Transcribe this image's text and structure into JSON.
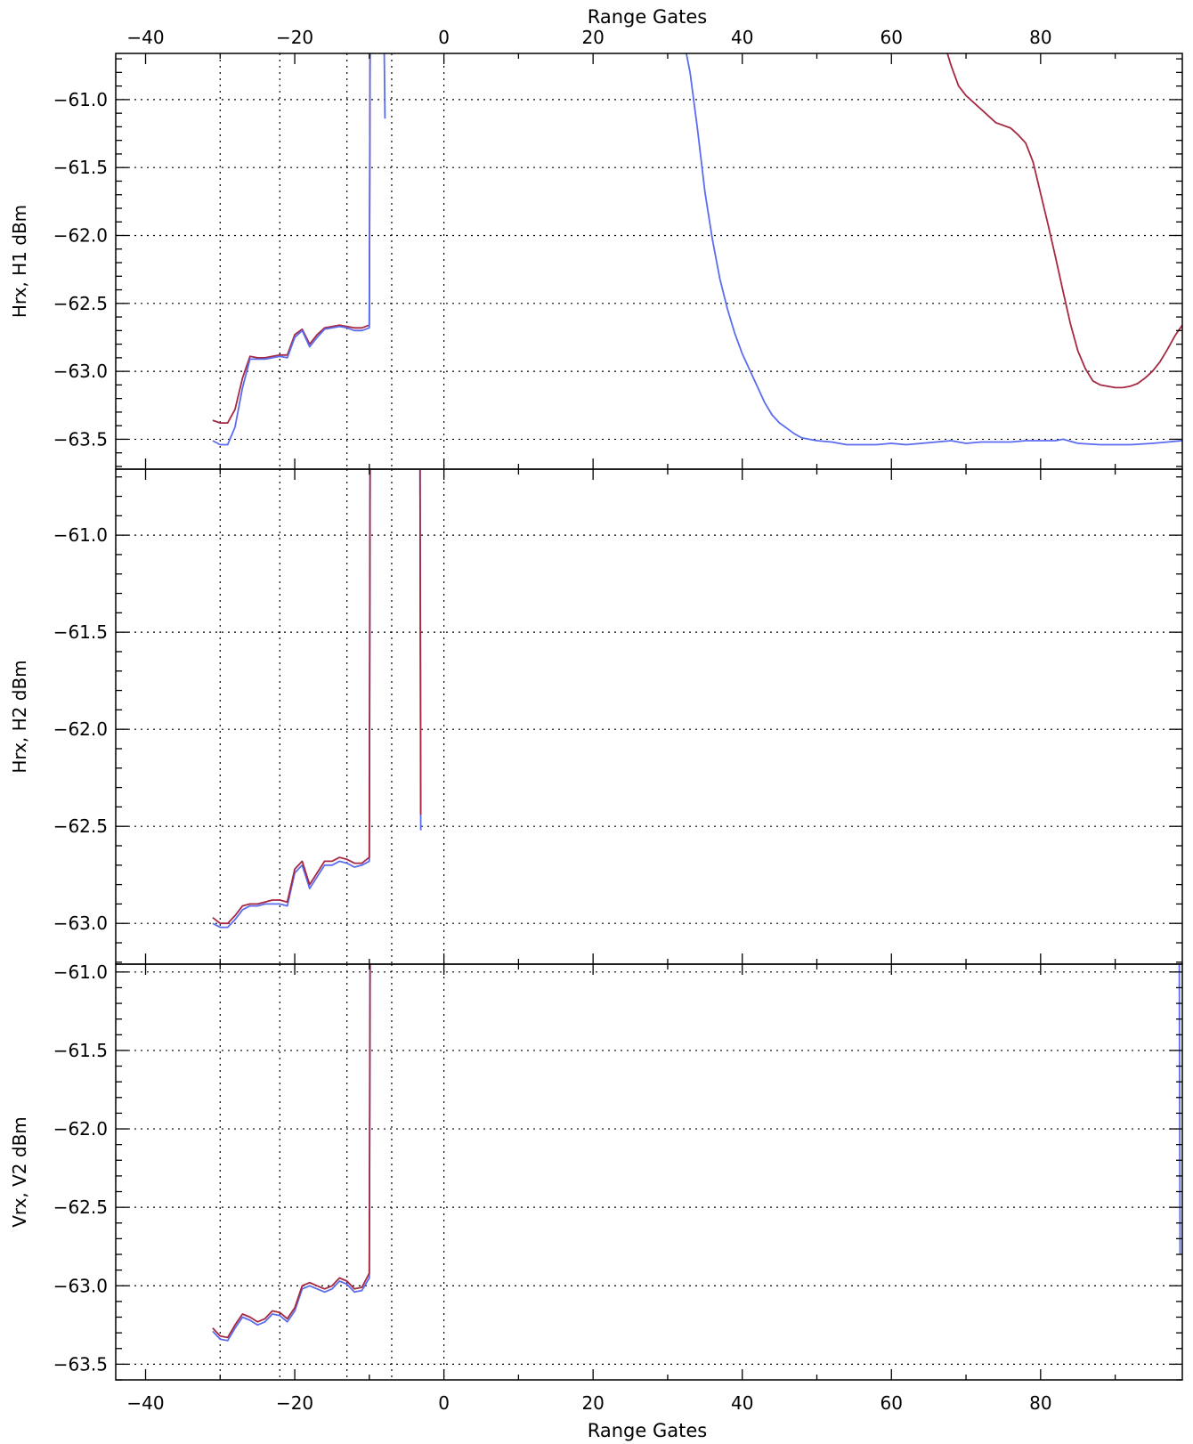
{
  "colors": {
    "blue": "#5b6cf0",
    "red": "#a62842",
    "axis": "#000000",
    "grid": "#000000"
  },
  "top_axis_label": "Range Gates",
  "bottom_axis_label": "Range Gates",
  "x_tick_labels": [
    "−40",
    "−20",
    "0",
    "20",
    "40",
    "60",
    "80"
  ],
  "chart_data": [
    {
      "type": "line",
      "ylabel": "Hrx, H1  dBm",
      "xlim": [
        -44,
        99
      ],
      "ylim": [
        -63.72,
        -60.66
      ],
      "x_ticks": [
        -40,
        -20,
        0,
        20,
        40,
        60,
        80
      ],
      "y_ticks": [
        -61.0,
        -61.5,
        -62.0,
        -62.5,
        -63.0,
        -63.5
      ],
      "y_tick_labels": [
        "−61.0",
        "−61.5",
        "−62.0",
        "−62.5",
        "−63.0",
        "−63.5"
      ],
      "vlines": [
        -30,
        -22,
        -13,
        -7,
        0
      ],
      "grid": true,
      "series": [
        {
          "color": "red",
          "segments": [
            [
              [
                -31,
                -63.36
              ],
              [
                -30,
                -63.38
              ],
              [
                -29,
                -63.38
              ],
              [
                -28,
                -63.28
              ],
              [
                -27,
                -63.05
              ],
              [
                -26,
                -62.89
              ],
              [
                -25,
                -62.9
              ],
              [
                -24,
                -62.9
              ],
              [
                -23,
                -62.89
              ],
              [
                -22,
                -62.88
              ],
              [
                -21,
                -62.88
              ],
              [
                -20,
                -62.73
              ],
              [
                -19,
                -62.69
              ],
              [
                -18,
                -62.8
              ],
              [
                -17,
                -62.73
              ],
              [
                -16,
                -62.68
              ],
              [
                -15,
                -62.67
              ],
              [
                -14,
                -62.66
              ],
              [
                -13,
                -62.67
              ],
              [
                -12,
                -62.68
              ],
              [
                -11,
                -62.68
              ],
              [
                -10,
                -62.66
              ],
              [
                -9.9,
                -60.66
              ]
            ],
            [
              [
                67.5,
                -60.66
              ],
              [
                68,
                -60.75
              ],
              [
                69,
                -60.9
              ],
              [
                70,
                -60.97
              ],
              [
                72,
                -61.07
              ],
              [
                74,
                -61.17
              ],
              [
                76,
                -61.21
              ],
              [
                77,
                -61.26
              ],
              [
                78,
                -61.32
              ],
              [
                79,
                -61.46
              ],
              [
                80,
                -61.69
              ],
              [
                81,
                -61.92
              ],
              [
                82,
                -62.16
              ],
              [
                83,
                -62.41
              ],
              [
                84,
                -62.65
              ],
              [
                85,
                -62.85
              ],
              [
                86,
                -62.98
              ],
              [
                87,
                -63.07
              ],
              [
                88,
                -63.1
              ],
              [
                89,
                -63.11
              ],
              [
                90,
                -63.12
              ],
              [
                91,
                -63.12
              ],
              [
                92,
                -63.11
              ],
              [
                93,
                -63.09
              ],
              [
                94,
                -63.05
              ],
              [
                95,
                -63.0
              ],
              [
                96,
                -62.93
              ],
              [
                97,
                -62.84
              ],
              [
                98,
                -62.74
              ],
              [
                99,
                -62.66
              ]
            ]
          ]
        },
        {
          "color": "blue",
          "segments": [
            [
              [
                -31,
                -63.51
              ],
              [
                -30,
                -63.54
              ],
              [
                -29,
                -63.54
              ],
              [
                -28,
                -63.41
              ],
              [
                -27,
                -63.12
              ],
              [
                -26,
                -62.91
              ],
              [
                -25,
                -62.91
              ],
              [
                -24,
                -62.91
              ],
              [
                -23,
                -62.9
              ],
              [
                -22,
                -62.89
              ],
              [
                -21,
                -62.9
              ],
              [
                -20,
                -62.75
              ],
              [
                -19,
                -62.7
              ],
              [
                -18,
                -62.82
              ],
              [
                -17,
                -62.75
              ],
              [
                -16,
                -62.69
              ],
              [
                -15,
                -62.68
              ],
              [
                -14,
                -62.67
              ],
              [
                -13,
                -62.68
              ],
              [
                -12,
                -62.7
              ],
              [
                -11,
                -62.7
              ],
              [
                -10,
                -62.68
              ],
              [
                -9.9,
                -60.66
              ]
            ],
            [
              [
                -8,
                -60.66
              ],
              [
                -7.9,
                -61.14
              ]
            ],
            [
              [
                32.5,
                -60.66
              ],
              [
                33,
                -60.8
              ],
              [
                34,
                -61.22
              ],
              [
                35,
                -61.68
              ],
              [
                36,
                -62.03
              ],
              [
                37,
                -62.32
              ],
              [
                38,
                -62.54
              ],
              [
                39,
                -62.72
              ],
              [
                40,
                -62.87
              ],
              [
                41,
                -62.99
              ],
              [
                42,
                -63.11
              ],
              [
                43,
                -63.23
              ],
              [
                44,
                -63.32
              ],
              [
                45,
                -63.38
              ],
              [
                46,
                -63.42
              ],
              [
                47,
                -63.46
              ],
              [
                48,
                -63.49
              ],
              [
                50,
                -63.51
              ],
              [
                52,
                -63.52
              ],
              [
                54,
                -63.54
              ],
              [
                56,
                -63.54
              ],
              [
                58,
                -63.54
              ],
              [
                60,
                -63.53
              ],
              [
                62,
                -63.54
              ],
              [
                64,
                -63.53
              ],
              [
                66,
                -63.52
              ],
              [
                68,
                -63.51
              ],
              [
                70,
                -63.53
              ],
              [
                72,
                -63.52
              ],
              [
                74,
                -63.52
              ],
              [
                76,
                -63.52
              ],
              [
                78,
                -63.51
              ],
              [
                80,
                -63.51
              ],
              [
                82,
                -63.51
              ],
              [
                83,
                -63.5
              ],
              [
                85,
                -63.53
              ],
              [
                88,
                -63.54
              ],
              [
                92,
                -63.54
              ],
              [
                95,
                -63.53
              ],
              [
                97,
                -63.52
              ],
              [
                99,
                -63.51
              ]
            ]
          ]
        }
      ]
    },
    {
      "type": "line",
      "ylabel": "Hrx, H2  dBm",
      "xlim": [
        -44,
        99
      ],
      "ylim": [
        -63.21,
        -60.66
      ],
      "x_ticks": [
        -40,
        -20,
        0,
        20,
        40,
        60,
        80
      ],
      "y_ticks": [
        -61.0,
        -61.5,
        -62.0,
        -62.5,
        -63.0
      ],
      "y_tick_labels": [
        "−61.0",
        "−61.5",
        "−62.0",
        "−62.5",
        "−63.0"
      ],
      "vlines": [
        -30,
        -22,
        -13,
        -7,
        0
      ],
      "grid": true,
      "series": [
        {
          "color": "blue",
          "segments": [
            [
              [
                -31,
                -63.0
              ],
              [
                -30,
                -63.02
              ],
              [
                -29,
                -63.02
              ],
              [
                -28,
                -62.98
              ],
              [
                -27,
                -62.93
              ],
              [
                -26,
                -62.91
              ],
              [
                -25,
                -62.91
              ],
              [
                -24,
                -62.9
              ],
              [
                -23,
                -62.9
              ],
              [
                -22,
                -62.9
              ],
              [
                -21,
                -62.91
              ],
              [
                -20,
                -62.74
              ],
              [
                -19,
                -62.7
              ],
              [
                -18,
                -62.82
              ],
              [
                -17,
                -62.76
              ],
              [
                -16,
                -62.7
              ],
              [
                -15,
                -62.7
              ],
              [
                -14,
                -62.68
              ],
              [
                -13,
                -62.69
              ],
              [
                -12,
                -62.71
              ],
              [
                -11,
                -62.7
              ],
              [
                -10,
                -62.68
              ],
              [
                -9.9,
                -60.66
              ]
            ],
            [
              [
                -3.2,
                -60.66
              ],
              [
                -3.1,
                -62.52
              ]
            ]
          ]
        },
        {
          "color": "red",
          "segments": [
            [
              [
                -31,
                -62.97
              ],
              [
                -30,
                -63.0
              ],
              [
                -29,
                -63.0
              ],
              [
                -28,
                -62.96
              ],
              [
                -27,
                -62.91
              ],
              [
                -26,
                -62.9
              ],
              [
                -25,
                -62.9
              ],
              [
                -24,
                -62.89
              ],
              [
                -23,
                -62.88
              ],
              [
                -22,
                -62.88
              ],
              [
                -21,
                -62.89
              ],
              [
                -20,
                -62.72
              ],
              [
                -19,
                -62.68
              ],
              [
                -18,
                -62.8
              ],
              [
                -17,
                -62.74
              ],
              [
                -16,
                -62.68
              ],
              [
                -15,
                -62.68
              ],
              [
                -14,
                -62.66
              ],
              [
                -13,
                -62.67
              ],
              [
                -12,
                -62.69
              ],
              [
                -11,
                -62.69
              ],
              [
                -10,
                -62.66
              ],
              [
                -9.9,
                -60.66
              ]
            ],
            [
              [
                -3.2,
                -60.66
              ],
              [
                -3.1,
                -62.44
              ]
            ]
          ]
        }
      ]
    },
    {
      "type": "line",
      "ylabel": "Vrx, V2  dBm",
      "xlim": [
        -44,
        99
      ],
      "ylim": [
        -63.6,
        -60.95
      ],
      "x_ticks": [
        -40,
        -20,
        0,
        20,
        40,
        60,
        80
      ],
      "y_ticks": [
        -61.0,
        -61.5,
        -62.0,
        -62.5,
        -63.0,
        -63.5
      ],
      "y_tick_labels": [
        "−61.0",
        "−61.5",
        "−62.0",
        "−62.5",
        "−63.0",
        "−63.5"
      ],
      "vlines": [
        -30,
        -22,
        -13,
        -7,
        0
      ],
      "grid": true,
      "series": [
        {
          "color": "blue",
          "segments": [
            [
              [
                -31,
                -63.29
              ],
              [
                -30,
                -63.34
              ],
              [
                -29,
                -63.35
              ],
              [
                -28,
                -63.27
              ],
              [
                -27,
                -63.2
              ],
              [
                -26,
                -63.22
              ],
              [
                -25,
                -63.25
              ],
              [
                -24,
                -63.23
              ],
              [
                -23,
                -63.18
              ],
              [
                -22,
                -63.19
              ],
              [
                -21,
                -63.23
              ],
              [
                -20,
                -63.16
              ],
              [
                -19,
                -63.02
              ],
              [
                -18,
                -63.0
              ],
              [
                -17,
                -63.02
              ],
              [
                -16,
                -63.04
              ],
              [
                -15,
                -63.02
              ],
              [
                -14,
                -62.97
              ],
              [
                -13,
                -62.99
              ],
              [
                -12,
                -63.04
              ],
              [
                -11,
                -63.03
              ],
              [
                -10,
                -62.95
              ],
              [
                -9.9,
                -60.95
              ]
            ],
            [
              [
                98.6,
                -60.95
              ],
              [
                98.7,
                -62.8
              ]
            ]
          ]
        },
        {
          "color": "red",
          "segments": [
            [
              [
                -31,
                -63.27
              ],
              [
                -30,
                -63.32
              ],
              [
                -29,
                -63.33
              ],
              [
                -28,
                -63.25
              ],
              [
                -27,
                -63.18
              ],
              [
                -26,
                -63.2
              ],
              [
                -25,
                -63.23
              ],
              [
                -24,
                -63.21
              ],
              [
                -23,
                -63.16
              ],
              [
                -22,
                -63.17
              ],
              [
                -21,
                -63.21
              ],
              [
                -20,
                -63.14
              ],
              [
                -19,
                -63.0
              ],
              [
                -18,
                -62.98
              ],
              [
                -17,
                -63.0
              ],
              [
                -16,
                -63.02
              ],
              [
                -15,
                -63.0
              ],
              [
                -14,
                -62.95
              ],
              [
                -13,
                -62.97
              ],
              [
                -12,
                -63.02
              ],
              [
                -11,
                -63.01
              ],
              [
                -10,
                -62.92
              ],
              [
                -9.9,
                -60.95
              ]
            ]
          ]
        }
      ]
    }
  ]
}
